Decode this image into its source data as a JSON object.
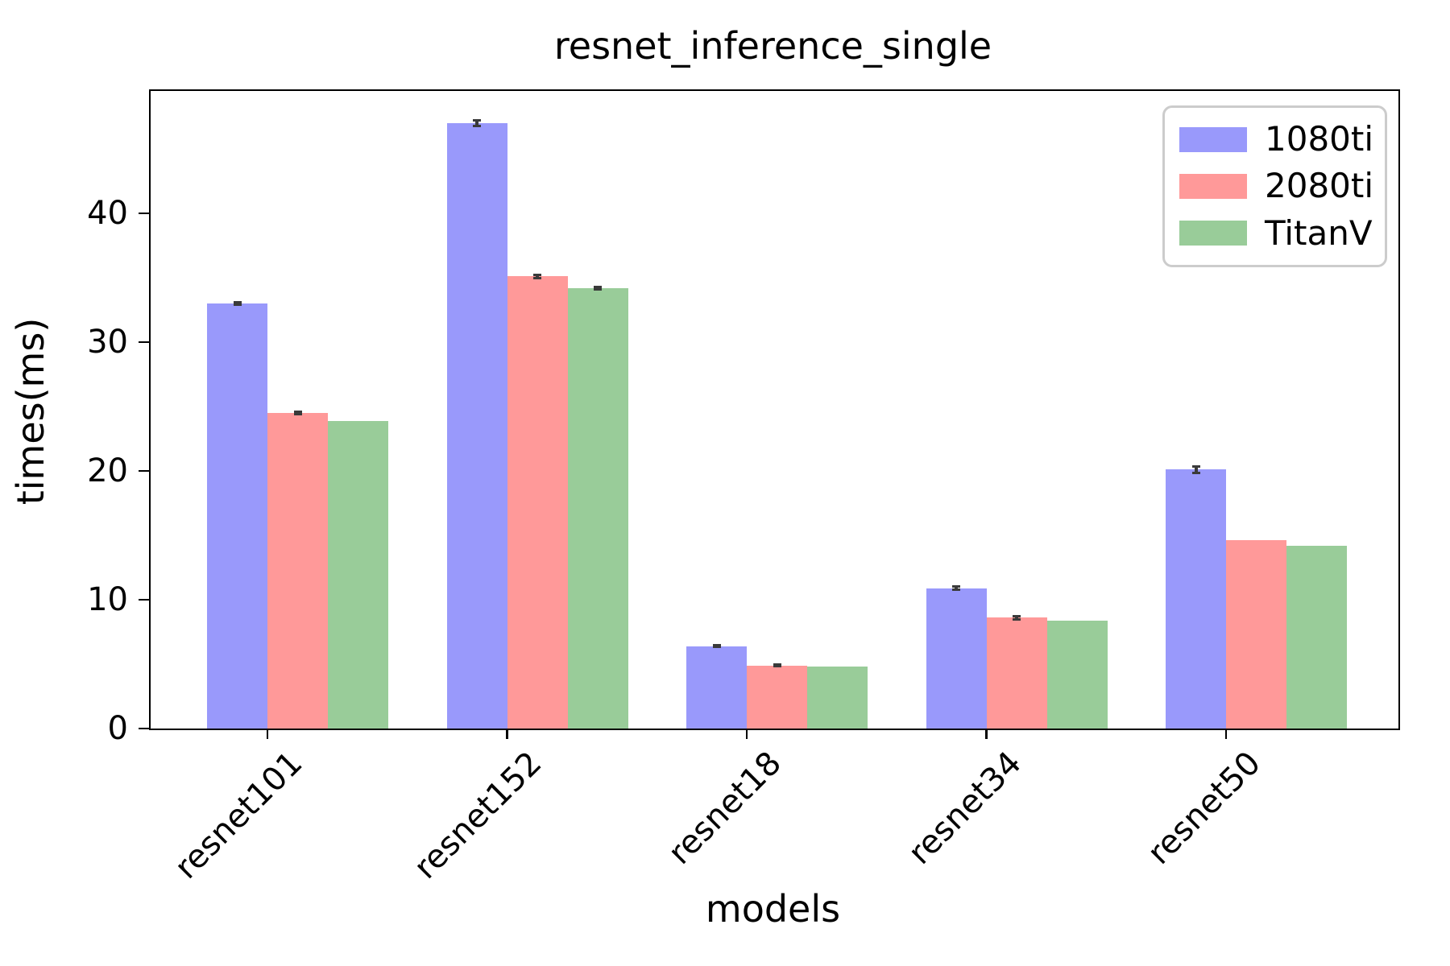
{
  "chart_data": {
    "type": "bar",
    "title": "resnet_inference_single",
    "xlabel": "models",
    "ylabel": "times(ms)",
    "categories": [
      "resnet101",
      "resnet152",
      "resnet18",
      "resnet34",
      "resnet50"
    ],
    "series": [
      {
        "name": "1080ti",
        "color": "#9999fb",
        "values": [
          33.0,
          47.0,
          6.4,
          10.9,
          20.1
        ],
        "errors": [
          0.12,
          0.2,
          0.06,
          0.12,
          0.25
        ]
      },
      {
        "name": "2080ti",
        "color": "#ff9999",
        "values": [
          24.5,
          35.1,
          4.9,
          8.6,
          14.6
        ],
        "errors": [
          0.12,
          0.12,
          0.06,
          0.12,
          0
        ]
      },
      {
        "name": "TitanV",
        "color": "#99cc99",
        "values": [
          23.9,
          34.2,
          4.8,
          8.4,
          14.2
        ],
        "errors": [
          0,
          0.1,
          0,
          0,
          0
        ]
      }
    ],
    "yticks": [
      0,
      10,
      20,
      30,
      40
    ],
    "ylim": [
      0,
      49.5
    ],
    "grid": false,
    "legend_position": "upper right",
    "error_color": "#3a3a3a",
    "axis_color": "#000000"
  }
}
